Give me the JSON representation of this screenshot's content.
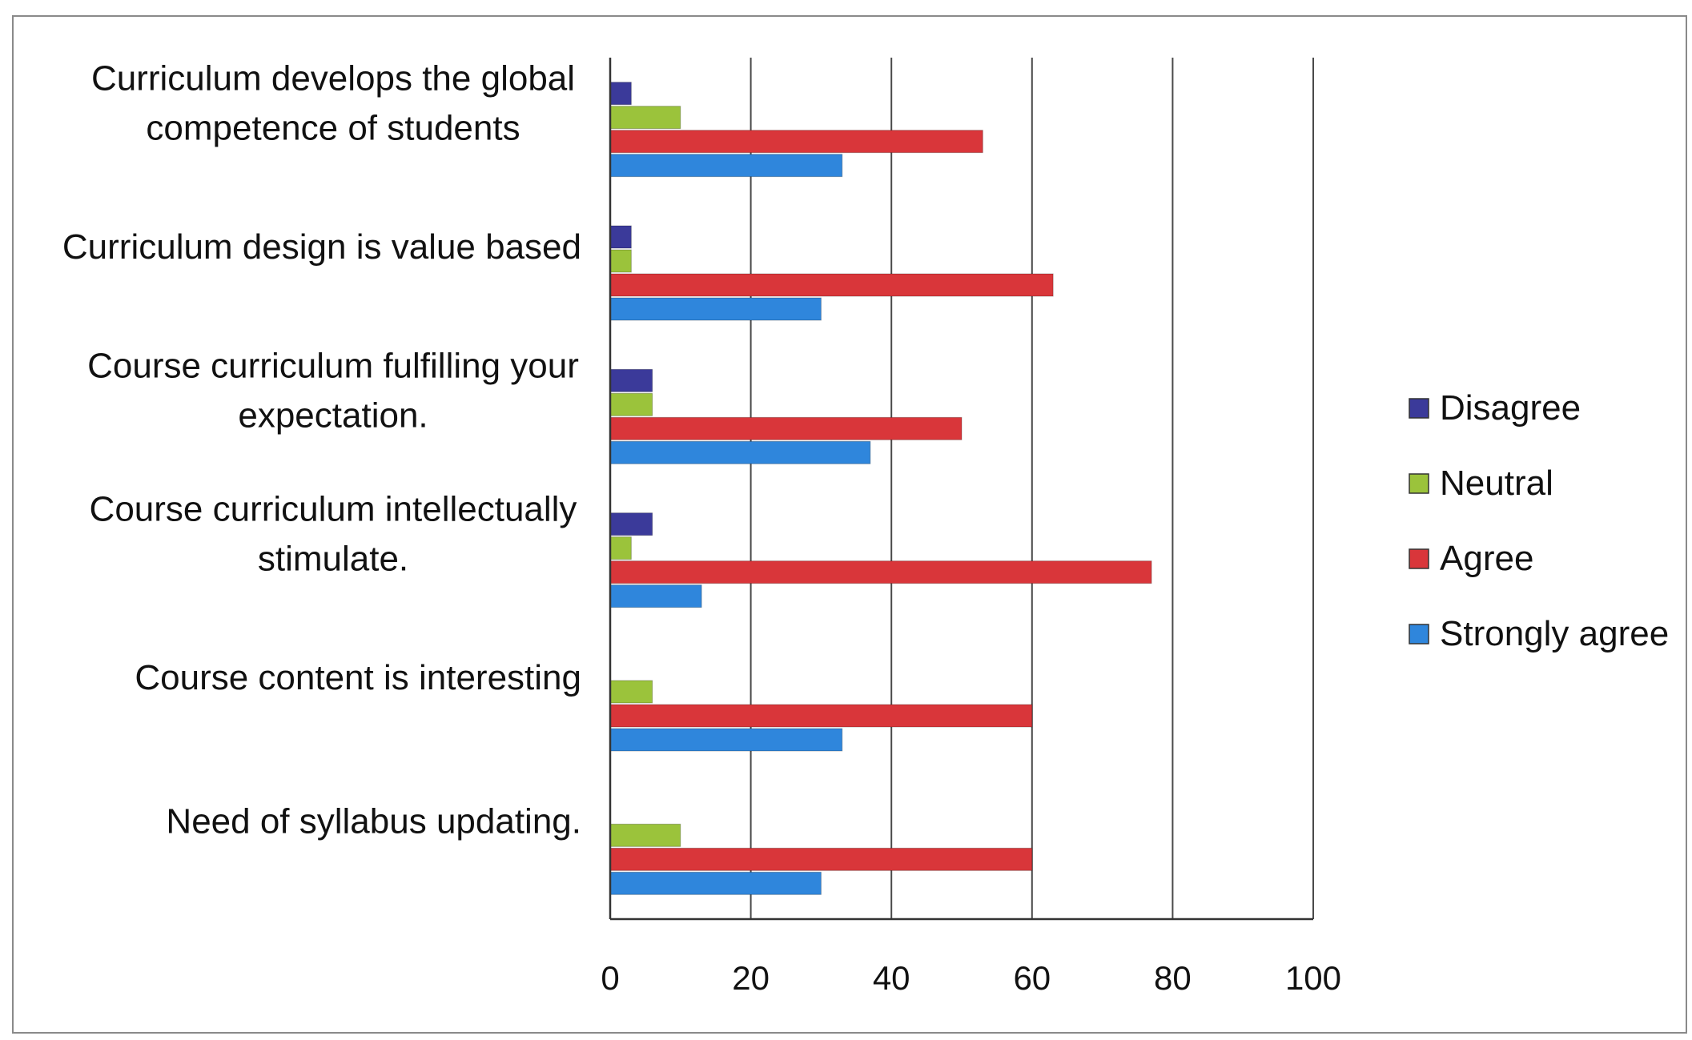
{
  "chart_data": {
    "type": "bar",
    "orientation": "horizontal",
    "categories": [
      "Curriculum develops the global\ncompetence of students",
      "Curriculum design is value based",
      "Course curriculum fulfilling your\nexpectation.",
      "Course curriculum intellectually\nstimulate.",
      "Course content is interesting",
      "Need of syllabus updating."
    ],
    "series": [
      {
        "name": "Disagree",
        "color": "#3b3a9a",
        "values": [
          3,
          3,
          6,
          6,
          0,
          0
        ]
      },
      {
        "name": "Neutral",
        "color": "#9bc33b",
        "values": [
          10,
          3,
          6,
          3,
          6,
          10
        ]
      },
      {
        "name": "Agree",
        "color": "#d9363a",
        "values": [
          53,
          63,
          50,
          77,
          60,
          60
        ]
      },
      {
        "name": "Strongly agree",
        "color": "#2f86dc",
        "values": [
          33,
          30,
          37,
          13,
          33,
          30
        ]
      }
    ],
    "xlim": [
      0,
      100
    ],
    "xticks": [
      "0",
      "20",
      "40",
      "60",
      "80",
      "100"
    ],
    "grid": "vertical",
    "legend_position": "right",
    "title": "",
    "xlabel": "",
    "ylabel": ""
  }
}
